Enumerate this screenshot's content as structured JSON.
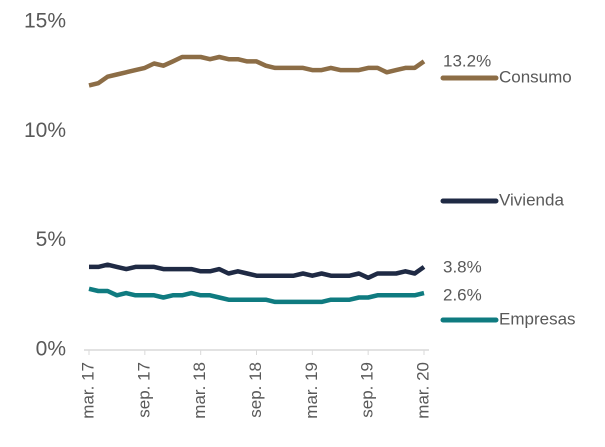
{
  "chart_data": {
    "type": "line",
    "categories": [
      "mar. 17",
      null,
      null,
      null,
      null,
      null,
      "sep. 17",
      null,
      null,
      null,
      null,
      null,
      "mar. 18",
      null,
      null,
      null,
      null,
      null,
      "sep. 18",
      null,
      null,
      null,
      null,
      null,
      "mar. 19",
      null,
      null,
      null,
      null,
      null,
      "sep. 19",
      null,
      null,
      null,
      null,
      null,
      "mar. 20"
    ],
    "series": [
      {
        "name": "Consumo",
        "color": "#8c6d46",
        "values": [
          12.1,
          12.2,
          12.5,
          12.6,
          12.7,
          12.8,
          12.9,
          13.1,
          13.0,
          13.2,
          13.4,
          13.4,
          13.4,
          13.3,
          13.4,
          13.3,
          13.3,
          13.2,
          13.2,
          13.0,
          12.9,
          12.9,
          12.9,
          12.9,
          12.8,
          12.8,
          12.9,
          12.8,
          12.8,
          12.8,
          12.9,
          12.9,
          12.7,
          12.8,
          12.9,
          12.9,
          13.2
        ],
        "value_labels": [
          null,
          null,
          null,
          null,
          null,
          null,
          null,
          null,
          null,
          null,
          null,
          null,
          null,
          null,
          null,
          null,
          null,
          null,
          null,
          null,
          null,
          null,
          null,
          null,
          null,
          null,
          null,
          null,
          null,
          null,
          null,
          null,
          null,
          null,
          null,
          null,
          "13.2%"
        ]
      },
      {
        "name": "Vivienda",
        "color": "#1f2a44",
        "values": [
          3.8,
          3.8,
          3.9,
          3.8,
          3.7,
          3.8,
          3.8,
          3.8,
          3.7,
          3.7,
          3.7,
          3.7,
          3.6,
          3.6,
          3.7,
          3.5,
          3.6,
          3.5,
          3.4,
          3.4,
          3.4,
          3.4,
          3.4,
          3.5,
          3.4,
          3.5,
          3.4,
          3.4,
          3.4,
          3.5,
          3.3,
          3.5,
          3.5,
          3.5,
          3.6,
          3.5,
          3.8
        ],
        "value_labels": [
          null,
          null,
          null,
          null,
          null,
          null,
          null,
          null,
          null,
          null,
          null,
          null,
          null,
          null,
          null,
          null,
          null,
          null,
          null,
          null,
          null,
          null,
          null,
          null,
          null,
          null,
          null,
          null,
          null,
          null,
          null,
          null,
          null,
          null,
          null,
          null,
          "3.8%"
        ]
      },
      {
        "name": "Empresas",
        "color": "#0f7b80",
        "values": [
          2.8,
          2.7,
          2.7,
          2.5,
          2.6,
          2.5,
          2.5,
          2.5,
          2.4,
          2.5,
          2.5,
          2.6,
          2.5,
          2.5,
          2.4,
          2.3,
          2.3,
          2.3,
          2.3,
          2.3,
          2.2,
          2.2,
          2.2,
          2.2,
          2.2,
          2.2,
          2.3,
          2.3,
          2.3,
          2.4,
          2.4,
          2.5,
          2.5,
          2.5,
          2.5,
          2.5,
          2.6
        ],
        "value_labels": [
          null,
          null,
          null,
          null,
          null,
          null,
          null,
          null,
          null,
          null,
          null,
          null,
          null,
          null,
          null,
          null,
          null,
          null,
          null,
          null,
          null,
          null,
          null,
          null,
          null,
          null,
          null,
          null,
          null,
          null,
          null,
          null,
          null,
          null,
          null,
          null,
          "2.6%"
        ]
      }
    ],
    "ylim": [
      0,
      15
    ],
    "yticks": [
      {
        "value": 0,
        "label": "0%"
      },
      {
        "value": 5,
        "label": "5%"
      },
      {
        "value": 10,
        "label": "10%"
      },
      {
        "value": 15,
        "label": "15%"
      }
    ],
    "grid": false
  }
}
